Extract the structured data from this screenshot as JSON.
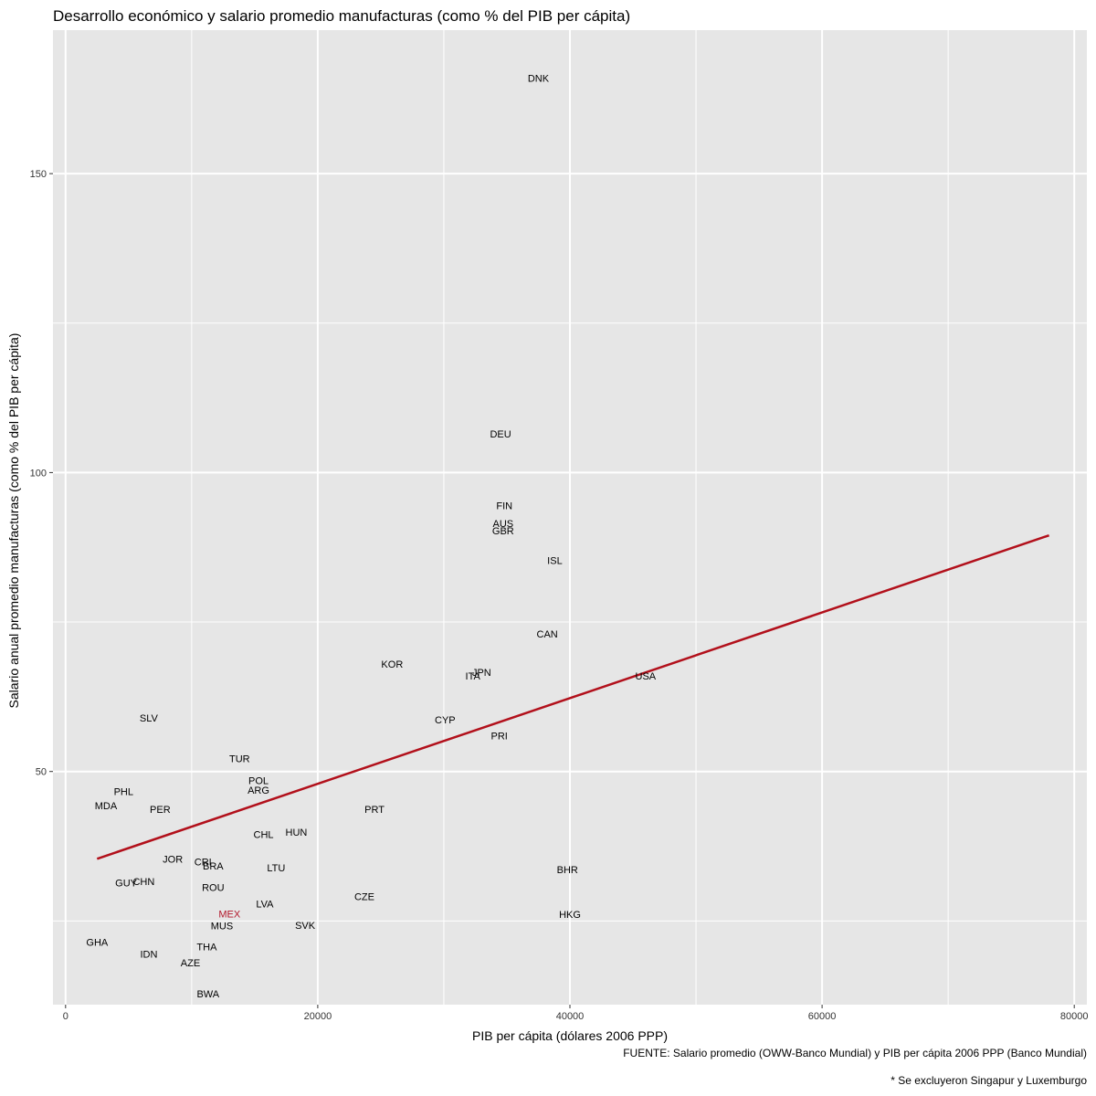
{
  "chart_data": {
    "type": "scatter",
    "title": "Desarrollo económico y salario promedio manufacturas (como % del PIB per cápita)",
    "xlabel": "PIB per cápita (dólares 2006 PPP)",
    "ylabel": "Salario anual promedio manufacturas (como % del PIB per cápita)",
    "xlim": [
      -1000,
      81000
    ],
    "ylim": [
      11,
      174
    ],
    "x_ticks": [
      0,
      20000,
      40000,
      60000,
      80000
    ],
    "x_tick_labels": [
      "0",
      "20000",
      "40000",
      "60000",
      "80000"
    ],
    "y_ticks": [
      50,
      100,
      150
    ],
    "y_tick_labels": [
      "50",
      "100",
      "150"
    ],
    "grid": true,
    "background_color": "#e6e6e6",
    "grid_color": "#ffffff",
    "label_color": "#000000",
    "highlight_color": "#b2182b",
    "trend_color": "#b2101b",
    "points": [
      {
        "label": "DNK",
        "x": 37500,
        "y": 166
      },
      {
        "label": "DEU",
        "x": 34500,
        "y": 106.5
      },
      {
        "label": "FIN",
        "x": 34800,
        "y": 94.5
      },
      {
        "label": "AUS",
        "x": 34700,
        "y": 91.5
      },
      {
        "label": "GBR",
        "x": 34700,
        "y": 90.3
      },
      {
        "label": "ISL",
        "x": 38800,
        "y": 85.3
      },
      {
        "label": "CAN",
        "x": 38200,
        "y": 73
      },
      {
        "label": "KOR",
        "x": 25900,
        "y": 68
      },
      {
        "label": "JPN",
        "x": 33000,
        "y": 66.6
      },
      {
        "label": "ITA",
        "x": 32300,
        "y": 66
      },
      {
        "label": "USA",
        "x": 46000,
        "y": 66
      },
      {
        "label": "SLV",
        "x": 6600,
        "y": 59
      },
      {
        "label": "CYP",
        "x": 30100,
        "y": 58.7
      },
      {
        "label": "PRI",
        "x": 34400,
        "y": 56
      },
      {
        "label": "TUR",
        "x": 13800,
        "y": 52.2
      },
      {
        "label": "POL",
        "x": 15300,
        "y": 48.5
      },
      {
        "label": "ARG",
        "x": 15300,
        "y": 46.9
      },
      {
        "label": "PHL",
        "x": 4600,
        "y": 46.7
      },
      {
        "label": "MDA",
        "x": 3200,
        "y": 44.3
      },
      {
        "label": "PER",
        "x": 7500,
        "y": 43.7
      },
      {
        "label": "PRT",
        "x": 24500,
        "y": 43.7
      },
      {
        "label": "HUN",
        "x": 18300,
        "y": 39.9
      },
      {
        "label": "CHL",
        "x": 15700,
        "y": 39.5
      },
      {
        "label": "JOR",
        "x": 8500,
        "y": 35.4
      },
      {
        "label": "CRI",
        "x": 10900,
        "y": 34.9
      },
      {
        "label": "BRA",
        "x": 11700,
        "y": 34.2
      },
      {
        "label": "LTU",
        "x": 16700,
        "y": 33.9
      },
      {
        "label": "BHR",
        "x": 39800,
        "y": 33.6
      },
      {
        "label": "CHN",
        "x": 6200,
        "y": 31.6
      },
      {
        "label": "GUY",
        "x": 4800,
        "y": 31.4
      },
      {
        "label": "ROU",
        "x": 11700,
        "y": 30.6
      },
      {
        "label": "CZE",
        "x": 23700,
        "y": 29.1
      },
      {
        "label": "LVA",
        "x": 15800,
        "y": 27.9
      },
      {
        "label": "MEX",
        "x": 13000,
        "y": 26.2,
        "highlight": true
      },
      {
        "label": "HKG",
        "x": 40000,
        "y": 26.1
      },
      {
        "label": "MUS",
        "x": 12400,
        "y": 24.2
      },
      {
        "label": "SVK",
        "x": 19000,
        "y": 24.3
      },
      {
        "label": "GHA",
        "x": 2500,
        "y": 21.5
      },
      {
        "label": "THA",
        "x": 11200,
        "y": 20.7
      },
      {
        "label": "IDN",
        "x": 6600,
        "y": 19.5
      },
      {
        "label": "AZE",
        "x": 9900,
        "y": 18
      },
      {
        "label": "BWA",
        "x": 11300,
        "y": 12.8
      }
    ],
    "trend_line": {
      "x": [
        2500,
        78000
      ],
      "y": [
        35.4,
        89.5
      ]
    },
    "captions": [
      "FUENTE: Salario promedio (OWW-Banco Mundial) y PIB per cápita 2006 PPP (Banco Mundial)",
      "* Se excluyeron Singapur y Luxemburgo"
    ]
  }
}
